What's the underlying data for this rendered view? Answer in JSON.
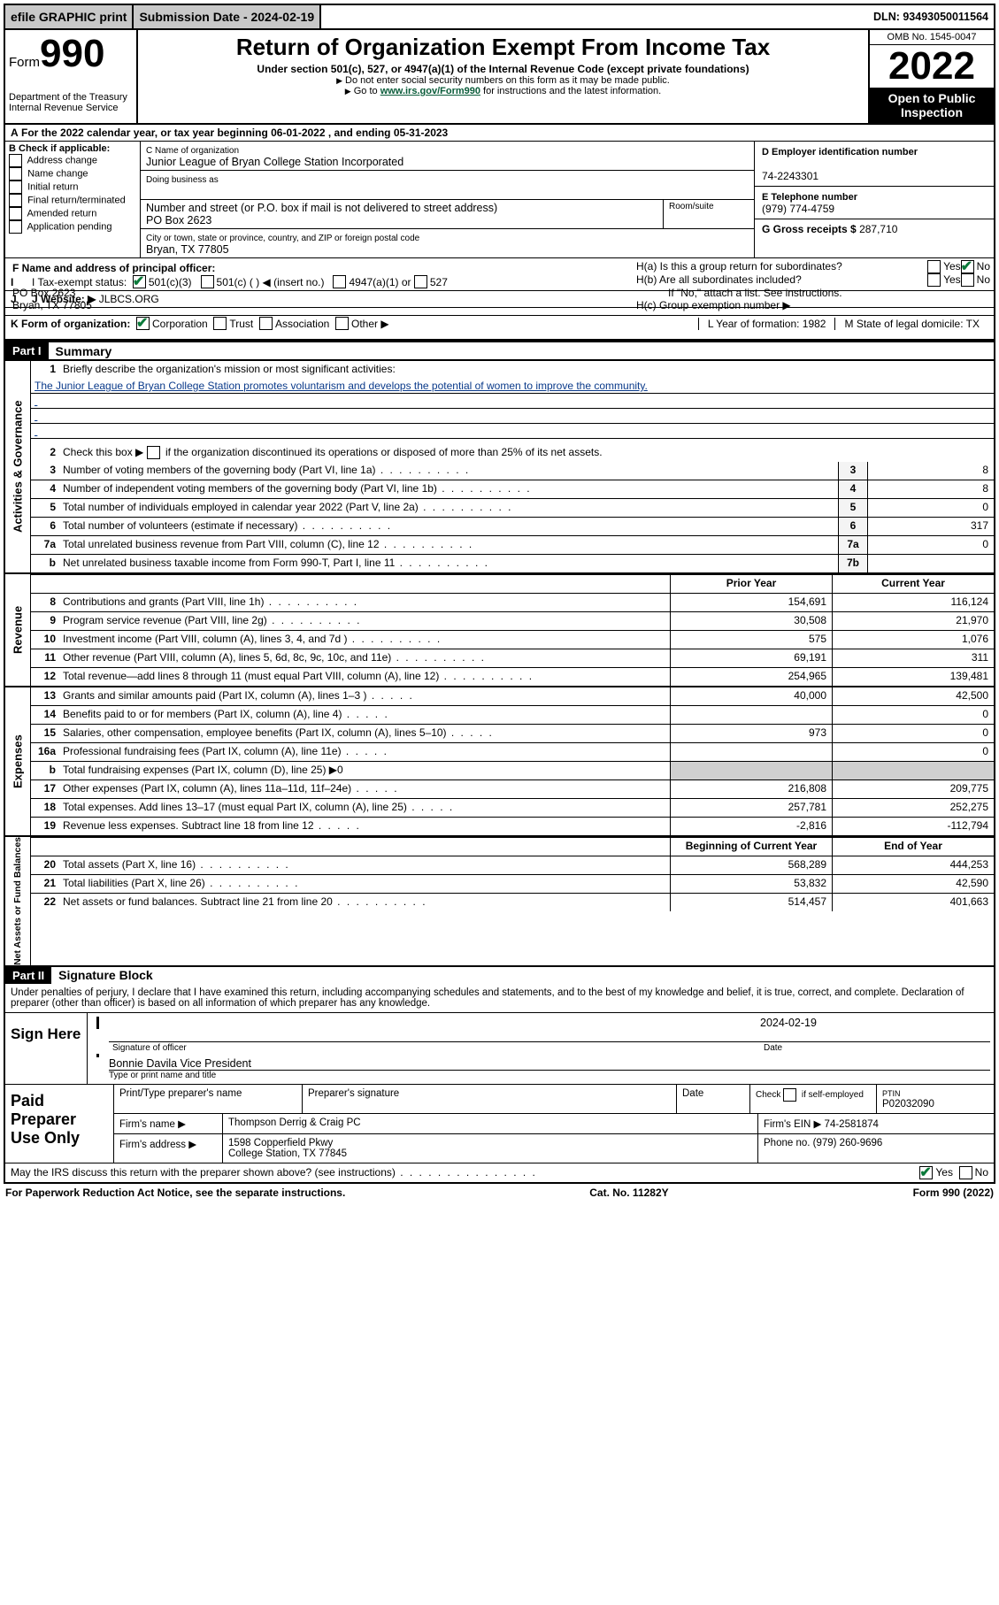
{
  "topbar": {
    "efile": "efile GRAPHIC print",
    "submission_label": "Submission Date - 2024-02-19",
    "dln": "DLN: 93493050011564"
  },
  "header": {
    "form_prefix": "Form",
    "form_number": "990",
    "dept": "Department of the Treasury\nInternal Revenue Service",
    "title": "Return of Organization Exempt From Income Tax",
    "subtitle1": "Under section 501(c), 527, or 4947(a)(1) of the Internal Revenue Code (except private foundations)",
    "subtitle2": "Do not enter social security numbers on this form as it may be made public.",
    "subtitle3_prefix": "Go to ",
    "subtitle3_link": "www.irs.gov/Form990",
    "subtitle3_suffix": " for instructions and the latest information.",
    "omb": "OMB No. 1545-0047",
    "year": "2022",
    "open": "Open to Public Inspection"
  },
  "sectionA": "For the 2022 calendar year, or tax year beginning 06-01-2022   , and ending 05-31-2023",
  "sectionB": {
    "header": "B Check if applicable:",
    "items": [
      "Address change",
      "Name change",
      "Initial return",
      "Final return/terminated",
      "Amended return",
      "Application pending"
    ]
  },
  "sectionC": {
    "name_label": "C Name of organization",
    "name": "Junior League of Bryan College Station Incorporated",
    "dba_label": "Doing business as",
    "street_label": "Number and street (or P.O. box if mail is not delivered to street address)",
    "street": "PO Box 2623",
    "room_label": "Room/suite",
    "city_label": "City or town, state or province, country, and ZIP or foreign postal code",
    "city": "Bryan, TX  77805"
  },
  "sectionD": {
    "ein_label": "D Employer identification number",
    "ein": "74-2243301",
    "phone_label": "E Telephone number",
    "phone": "(979) 774-4759",
    "gross_label": "G Gross receipts $ ",
    "gross": "287,710"
  },
  "sectionF": {
    "label": "F  Name and address of principal officer:",
    "line1": "PO Box 2623",
    "line2": "Bryan, TX  77805"
  },
  "sectionH": {
    "ha": "H(a)  Is this a group return for subordinates?",
    "hb": "H(b)  Are all subordinates included?",
    "hb_note": "If \"No,\" attach a list. See instructions.",
    "hc": "H(c)  Group exemption number ▶"
  },
  "rowI": {
    "label": "I   Tax-exempt status:",
    "opts": [
      "501(c)(3)",
      "501(c) (  ) ◀ (insert no.)",
      "4947(a)(1) or",
      "527"
    ]
  },
  "rowJ": {
    "label": "J   Website: ▶ ",
    "value": "JLBCS.ORG"
  },
  "rowK": {
    "label": "K Form of organization:",
    "opts": [
      "Corporation",
      "Trust",
      "Association",
      "Other ▶"
    ],
    "L": "L Year of formation: 1982",
    "M": "M State of legal domicile: TX"
  },
  "part1": {
    "header": "Part I",
    "title": "Summary",
    "mission_label": "Briefly describe the organization's mission or most significant activities:",
    "mission": "The Junior League of Bryan College Station promotes voluntarism and develops the potential of women to improve the community.",
    "line2": "Check this box ▶     if the organization discontinued its operations or disposed of more than 25% of its net assets.",
    "lines_gov": [
      {
        "n": "3",
        "d": "Number of voting members of the governing body (Part VI, line 1a)",
        "box": "3",
        "v": "8"
      },
      {
        "n": "4",
        "d": "Number of independent voting members of the governing body (Part VI, line 1b)",
        "box": "4",
        "v": "8"
      },
      {
        "n": "5",
        "d": "Total number of individuals employed in calendar year 2022 (Part V, line 2a)",
        "box": "5",
        "v": "0"
      },
      {
        "n": "6",
        "d": "Total number of volunteers (estimate if necessary)",
        "box": "6",
        "v": "317"
      },
      {
        "n": "7a",
        "d": "Total unrelated business revenue from Part VIII, column (C), line 12",
        "box": "7a",
        "v": "0"
      },
      {
        "n": "b",
        "d": "Net unrelated business taxable income from Form 990-T, Part I, line 11",
        "box": "7b",
        "v": ""
      }
    ],
    "col_prior": "Prior Year",
    "col_current": "Current Year",
    "lines_rev": [
      {
        "n": "8",
        "d": "Contributions and grants (Part VIII, line 1h)",
        "p": "154,691",
        "c": "116,124"
      },
      {
        "n": "9",
        "d": "Program service revenue (Part VIII, line 2g)",
        "p": "30,508",
        "c": "21,970"
      },
      {
        "n": "10",
        "d": "Investment income (Part VIII, column (A), lines 3, 4, and 7d )",
        "p": "575",
        "c": "1,076"
      },
      {
        "n": "11",
        "d": "Other revenue (Part VIII, column (A), lines 5, 6d, 8c, 9c, 10c, and 11e)",
        "p": "69,191",
        "c": "311"
      },
      {
        "n": "12",
        "d": "Total revenue—add lines 8 through 11 (must equal Part VIII, column (A), line 12)",
        "p": "254,965",
        "c": "139,481"
      }
    ],
    "lines_exp": [
      {
        "n": "13",
        "d": "Grants and similar amounts paid (Part IX, column (A), lines 1–3 )",
        "p": "40,000",
        "c": "42,500"
      },
      {
        "n": "14",
        "d": "Benefits paid to or for members (Part IX, column (A), line 4)",
        "p": "",
        "c": "0"
      },
      {
        "n": "15",
        "d": "Salaries, other compensation, employee benefits (Part IX, column (A), lines 5–10)",
        "p": "973",
        "c": "0"
      },
      {
        "n": "16a",
        "d": "Professional fundraising fees (Part IX, column (A), line 11e)",
        "p": "",
        "c": "0"
      },
      {
        "n": "b",
        "d": "Total fundraising expenses (Part IX, column (D), line 25) ▶0",
        "p": "gray",
        "c": "gray"
      },
      {
        "n": "17",
        "d": "Other expenses (Part IX, column (A), lines 11a–11d, 11f–24e)",
        "p": "216,808",
        "c": "209,775"
      },
      {
        "n": "18",
        "d": "Total expenses. Add lines 13–17 (must equal Part IX, column (A), line 25)",
        "p": "257,781",
        "c": "252,275"
      },
      {
        "n": "19",
        "d": "Revenue less expenses. Subtract line 18 from line 12",
        "p": "-2,816",
        "c": "-112,794"
      }
    ],
    "col_begin": "Beginning of Current Year",
    "col_end": "End of Year",
    "lines_net": [
      {
        "n": "20",
        "d": "Total assets (Part X, line 16)",
        "p": "568,289",
        "c": "444,253"
      },
      {
        "n": "21",
        "d": "Total liabilities (Part X, line 26)",
        "p": "53,832",
        "c": "42,590"
      },
      {
        "n": "22",
        "d": "Net assets or fund balances. Subtract line 21 from line 20",
        "p": "514,457",
        "c": "401,663"
      }
    ],
    "sides": {
      "gov": "Activities & Governance",
      "rev": "Revenue",
      "exp": "Expenses",
      "net": "Net Assets or Fund Balances"
    }
  },
  "part2": {
    "header": "Part II",
    "title": "Signature Block",
    "declaration": "Under penalties of perjury, I declare that I have examined this return, including accompanying schedules and statements, and to the best of my knowledge and belief, it is true, correct, and complete. Declaration of preparer (other than officer) is based on all information of which preparer has any knowledge.",
    "sign_here": "Sign Here",
    "sig_officer": "Signature of officer",
    "sig_date": "2024-02-19",
    "date_label": "Date",
    "officer_name": "Bonnie Davila  Vice President",
    "name_label": "Type or print name and title",
    "paid": "Paid Preparer Use Only",
    "prep_name_label": "Print/Type preparer's name",
    "prep_sig_label": "Preparer's signature",
    "prep_date_label": "Date",
    "check_self": "Check      if self-employed",
    "ptin_label": "PTIN",
    "ptin": "P02032090",
    "firm_name_label": "Firm's name    ▶",
    "firm_name": "Thompson Derrig & Craig PC",
    "firm_ein_label": "Firm's EIN ▶",
    "firm_ein": "74-2581874",
    "firm_addr_label": "Firm's address ▶",
    "firm_addr1": "1598 Copperfield Pkwy",
    "firm_addr2": "College Station, TX  77845",
    "phone_label": "Phone no.",
    "phone": "(979) 260-9696",
    "discuss": "May the IRS discuss this return with the preparer shown above? (see instructions)"
  },
  "footer": {
    "left": "For Paperwork Reduction Act Notice, see the separate instructions.",
    "mid": "Cat. No. 11282Y",
    "right": "Form 990 (2022)"
  }
}
